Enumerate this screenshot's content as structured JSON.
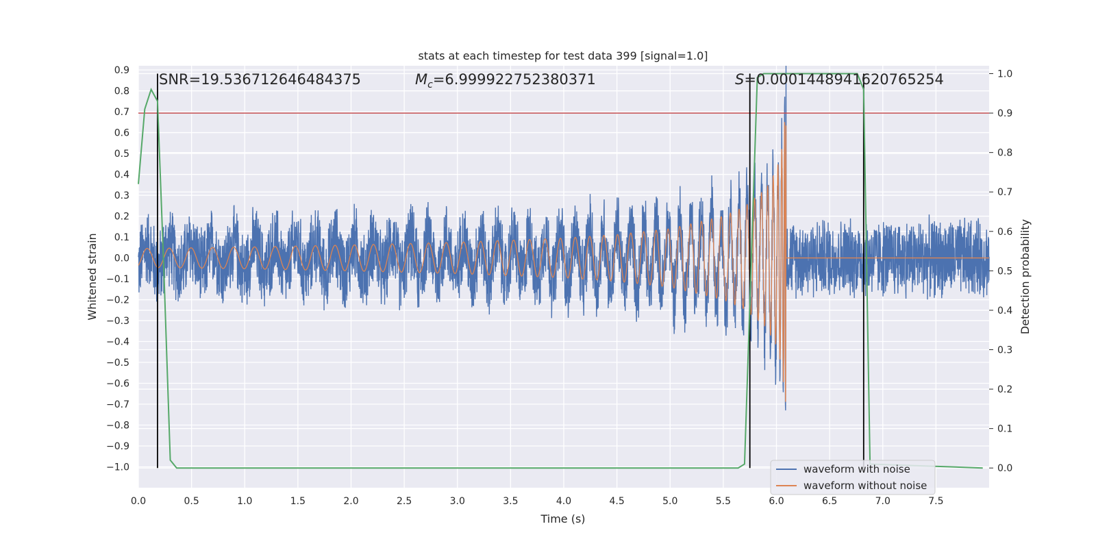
{
  "chart_data": {
    "type": "line",
    "title": "stats at each timestep for test data 399 [signal=1.0]",
    "xlabel": "Time (s)",
    "ylabel": "Whitened strain",
    "y2label": "Detection probability",
    "xlim": [
      0.0,
      8.0
    ],
    "ylim": [
      -1.1,
      0.92
    ],
    "y2lim": [
      -0.05,
      1.02
    ],
    "xticks": [
      "0.0",
      "0.5",
      "1.0",
      "1.5",
      "2.0",
      "2.5",
      "3.0",
      "3.5",
      "4.0",
      "4.5",
      "5.0",
      "5.5",
      "6.0",
      "6.5",
      "7.0",
      "7.5"
    ],
    "yticks": [
      "0.9",
      "0.8",
      "0.7",
      "0.6",
      "0.5",
      "0.4",
      "0.3",
      "0.2",
      "0.1",
      "0.0",
      "−0.1",
      "−0.2",
      "−0.3",
      "−0.4",
      "−0.5",
      "−0.6",
      "−0.7",
      "−0.8",
      "−0.9",
      "−1.0"
    ],
    "y2ticks": [
      "1.0",
      "0.9",
      "0.8",
      "0.7",
      "0.6",
      "0.5",
      "0.4",
      "0.3",
      "0.2",
      "0.1",
      "0.0"
    ],
    "grid": true,
    "legend_placement": "lower-right",
    "annotations": {
      "snr": "SNR=19.536712646484375",
      "mc_symbol": "M",
      "mc_sub": "c",
      "mc_value": "=6.999922752380371",
      "s_symbol": "S",
      "s_value": "=0.0001448941620765254"
    },
    "threshold": {
      "axis": "right",
      "value": 0.9,
      "color": "#c44e52"
    },
    "vertical_lines": [
      0.18,
      5.75,
      6.82
    ],
    "merger_time": 6.09,
    "series": [
      {
        "name": "waveform with noise",
        "color": "#4c72b0",
        "axis": "left",
        "noise_amplitude": 0.21,
        "samples": 4000
      },
      {
        "name": "waveform without noise",
        "color": "#dd8452",
        "axis": "left",
        "envelope": {
          "t": [
            0.0,
            1.0,
            2.0,
            3.0,
            4.0,
            4.5,
            5.0,
            5.5,
            5.7,
            5.9,
            6.0,
            6.05,
            6.09
          ],
          "amp": [
            0.045,
            0.052,
            0.062,
            0.075,
            0.095,
            0.112,
            0.14,
            0.2,
            0.245,
            0.33,
            0.42,
            0.52,
            0.72
          ]
        }
      },
      {
        "name": "detection probability",
        "color": "#55a868",
        "axis": "right",
        "x": [
          0.0,
          0.06,
          0.12,
          0.18,
          0.24,
          0.3,
          0.36,
          0.42,
          5.64,
          5.7,
          5.76,
          5.82,
          5.88,
          6.76,
          6.82,
          6.88,
          7.94
        ],
        "y": [
          0.72,
          0.91,
          0.96,
          0.93,
          0.5,
          0.02,
          0.0,
          0.0,
          0.0,
          0.01,
          0.5,
          0.99,
          1.0,
          1.0,
          0.96,
          0.01,
          0.0
        ]
      }
    ]
  }
}
